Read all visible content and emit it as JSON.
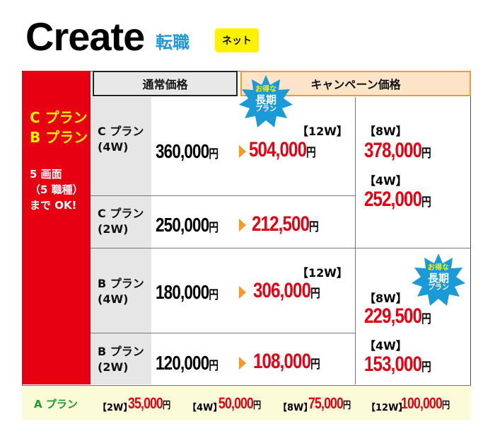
{
  "header": {
    "brand": "Create",
    "subtitle": "転職",
    "tag": "ネット"
  },
  "columns": {
    "regular": "通常価格",
    "campaign": "キャンペーン価格"
  },
  "left": {
    "plans_c": "C プラン",
    "plans_b": "B プラン",
    "note1": "5 画面",
    "note2": "（5 職種）",
    "note3": "まで OK!"
  },
  "badge": {
    "line1": "お得な",
    "line2": "長期",
    "line3": "プラン"
  },
  "yen": "円",
  "rows": [
    {
      "plan": "C プラン",
      "term": "(4W)",
      "regular": "360,000",
      "week": "【12W】",
      "sale": "504,000"
    },
    {
      "plan": "C プラン",
      "term": "(2W)",
      "regular": "250,000",
      "sale": "212,500"
    },
    {
      "plan": "B プラン",
      "term": "(4W)",
      "regular": "180,000",
      "week": "【12W】",
      "sale": "306,000"
    },
    {
      "plan": "B プラン",
      "term": "(2W)",
      "regular": "120,000",
      "sale": "108,000"
    }
  ],
  "campaign_c": [
    {
      "week": "【8W】",
      "price": "378,000"
    },
    {
      "week": "【4W】",
      "price": "252,000"
    }
  ],
  "campaign_b": [
    {
      "week": "【8W】",
      "price": "229,500"
    },
    {
      "week": "【4W】",
      "price": "153,000"
    }
  ],
  "a_plan": {
    "label": "A プラン",
    "items": [
      {
        "week": "【2W】",
        "price": "35,000"
      },
      {
        "week": "【4W】",
        "price": "50,000"
      },
      {
        "week": "【8W】",
        "price": "75,000"
      },
      {
        "week": "【12W】",
        "price": "100,000"
      }
    ]
  },
  "colors": {
    "red": "#e60012",
    "orange": "#f39a2e",
    "yellow": "#fff200",
    "blue": "#1a9bd7",
    "green": "#1a9c2e"
  }
}
